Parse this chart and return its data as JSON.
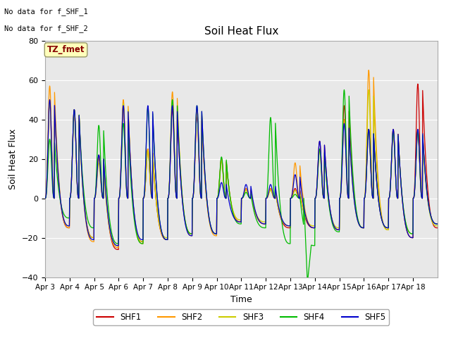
{
  "title": "Soil Heat Flux",
  "ylabel": "Soil Heat Flux",
  "xlabel": "Time",
  "ylim": [
    -40,
    80
  ],
  "yticks": [
    -40,
    -20,
    0,
    20,
    40,
    60,
    80
  ],
  "xtick_labels": [
    "Apr 3",
    "Apr 4",
    "Apr 5",
    "Apr 6",
    "Apr 7",
    "Apr 8",
    "Apr 9",
    "Apr 10",
    "Apr 11",
    "Apr 12",
    "Apr 13",
    "Apr 14",
    "Apr 15",
    "Apr 16",
    "Apr 17",
    "Apr 18"
  ],
  "colors": {
    "SHF1": "#cc0000",
    "SHF2": "#ff9900",
    "SHF3": "#cccc00",
    "SHF4": "#00bb00",
    "SHF5": "#0000cc"
  },
  "annotations": {
    "no_data1": "No data for f_SHF_1",
    "no_data2": "No data for f_SHF_2",
    "tz_label": "TZ_fmet"
  },
  "plot_bg": "#e8e8e8",
  "fig_bg": "#ffffff",
  "title_fontsize": 11,
  "label_fontsize": 9,
  "tick_fontsize": 8
}
